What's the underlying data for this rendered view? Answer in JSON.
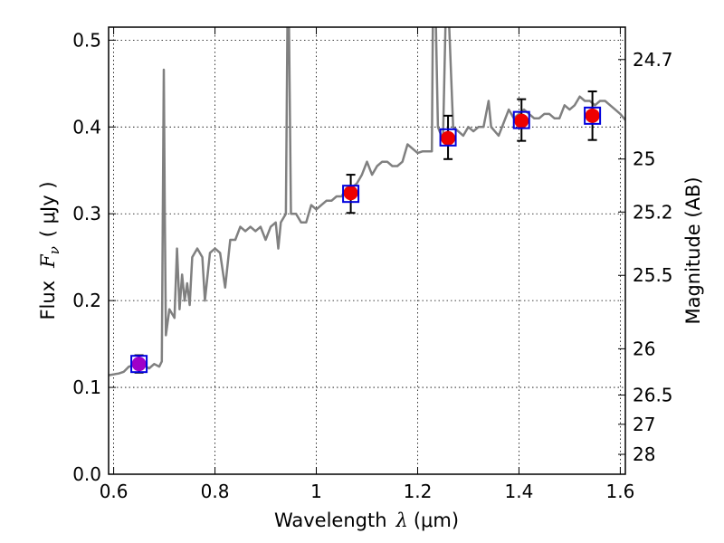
{
  "chart_data": {
    "type": "line",
    "xlabel": "Wavelength",
    "xlabel_symbol": "λ",
    "xlabel_unit": "(μm)",
    "ylabel": "Flux",
    "ylabel_symbol": "F",
    "ylabel_subscript": "ν",
    "ylabel_unit": "( μJy )",
    "y2label": "Magnitude (AB)",
    "xlim": [
      0.59,
      1.61
    ],
    "ylim": [
      0.0,
      0.515
    ],
    "grid": true,
    "x_ticks": [
      {
        "value": 0.6,
        "label": "0.6"
      },
      {
        "value": 0.8,
        "label": "0.8"
      },
      {
        "value": 1.0,
        "label": "1"
      },
      {
        "value": 1.2,
        "label": "1.2"
      },
      {
        "value": 1.4,
        "label": "1.4"
      },
      {
        "value": 1.6,
        "label": "1.6"
      }
    ],
    "y_ticks": [
      {
        "value": 0.0,
        "label": "0.0"
      },
      {
        "value": 0.1,
        "label": "0.1"
      },
      {
        "value": 0.2,
        "label": "0.2"
      },
      {
        "value": 0.3,
        "label": "0.3"
      },
      {
        "value": 0.4,
        "label": "0.4"
      },
      {
        "value": 0.5,
        "label": "0.5"
      }
    ],
    "y2_ticks": [
      {
        "flux": 0.4777,
        "label": "24.7"
      },
      {
        "flux": 0.3631,
        "label": "25"
      },
      {
        "flux": 0.302,
        "label": "25.2"
      },
      {
        "flux": 0.2291,
        "label": "25.5"
      },
      {
        "flux": 0.1445,
        "label": "26"
      },
      {
        "flux": 0.0912,
        "label": "26.5"
      },
      {
        "flux": 0.0575,
        "label": "27"
      },
      {
        "flux": 0.0229,
        "label": "28"
      }
    ],
    "series": [
      {
        "role": "model-spectrum",
        "color": "#808080",
        "points": [
          [
            0.59,
            0.114
          ],
          [
            0.61,
            0.116
          ],
          [
            0.62,
            0.118
          ],
          [
            0.63,
            0.124
          ],
          [
            0.645,
            0.126
          ],
          [
            0.66,
            0.125
          ],
          [
            0.67,
            0.122
          ],
          [
            0.68,
            0.127
          ],
          [
            0.69,
            0.124
          ],
          [
            0.695,
            0.13
          ],
          [
            0.697,
            0.3
          ],
          [
            0.699,
            0.466
          ],
          [
            0.701,
            0.3
          ],
          [
            0.703,
            0.16
          ],
          [
            0.71,
            0.19
          ],
          [
            0.72,
            0.18
          ],
          [
            0.725,
            0.26
          ],
          [
            0.73,
            0.19
          ],
          [
            0.735,
            0.23
          ],
          [
            0.74,
            0.2
          ],
          [
            0.745,
            0.22
          ],
          [
            0.75,
            0.195
          ],
          [
            0.755,
            0.25
          ],
          [
            0.765,
            0.26
          ],
          [
            0.775,
            0.25
          ],
          [
            0.78,
            0.2
          ],
          [
            0.79,
            0.255
          ],
          [
            0.8,
            0.26
          ],
          [
            0.81,
            0.255
          ],
          [
            0.82,
            0.215
          ],
          [
            0.83,
            0.27
          ],
          [
            0.84,
            0.27
          ],
          [
            0.85,
            0.285
          ],
          [
            0.86,
            0.28
          ],
          [
            0.87,
            0.285
          ],
          [
            0.88,
            0.28
          ],
          [
            0.89,
            0.285
          ],
          [
            0.9,
            0.27
          ],
          [
            0.91,
            0.285
          ],
          [
            0.92,
            0.29
          ],
          [
            0.925,
            0.26
          ],
          [
            0.93,
            0.29
          ],
          [
            0.94,
            0.3
          ],
          [
            0.943,
            0.52
          ],
          [
            0.946,
            0.52
          ],
          [
            0.95,
            0.3
          ],
          [
            0.96,
            0.3
          ],
          [
            0.97,
            0.29
          ],
          [
            0.98,
            0.29
          ],
          [
            0.99,
            0.31
          ],
          [
            1.0,
            0.305
          ],
          [
            1.01,
            0.31
          ],
          [
            1.02,
            0.315
          ],
          [
            1.03,
            0.315
          ],
          [
            1.04,
            0.32
          ],
          [
            1.05,
            0.32
          ],
          [
            1.06,
            0.33
          ],
          [
            1.07,
            0.33
          ],
          [
            1.08,
            0.335
          ],
          [
            1.09,
            0.345
          ],
          [
            1.1,
            0.36
          ],
          [
            1.11,
            0.345
          ],
          [
            1.12,
            0.355
          ],
          [
            1.13,
            0.36
          ],
          [
            1.14,
            0.36
          ],
          [
            1.15,
            0.355
          ],
          [
            1.16,
            0.355
          ],
          [
            1.17,
            0.36
          ],
          [
            1.18,
            0.38
          ],
          [
            1.19,
            0.375
          ],
          [
            1.2,
            0.37
          ],
          [
            1.21,
            0.372
          ],
          [
            1.22,
            0.372
          ],
          [
            1.228,
            0.372
          ],
          [
            1.23,
            0.52
          ],
          [
            1.236,
            0.52
          ],
          [
            1.24,
            0.4
          ],
          [
            1.25,
            0.385
          ],
          [
            1.255,
            0.52
          ],
          [
            1.262,
            0.52
          ],
          [
            1.27,
            0.4
          ],
          [
            1.28,
            0.395
          ],
          [
            1.29,
            0.39
          ],
          [
            1.3,
            0.4
          ],
          [
            1.31,
            0.395
          ],
          [
            1.32,
            0.4
          ],
          [
            1.33,
            0.4
          ],
          [
            1.335,
            0.415
          ],
          [
            1.34,
            0.43
          ],
          [
            1.345,
            0.4
          ],
          [
            1.36,
            0.39
          ],
          [
            1.37,
            0.405
          ],
          [
            1.38,
            0.42
          ],
          [
            1.39,
            0.41
          ],
          [
            1.4,
            0.415
          ],
          [
            1.41,
            0.42
          ],
          [
            1.42,
            0.415
          ],
          [
            1.43,
            0.41
          ],
          [
            1.44,
            0.41
          ],
          [
            1.45,
            0.415
          ],
          [
            1.46,
            0.415
          ],
          [
            1.47,
            0.41
          ],
          [
            1.48,
            0.41
          ],
          [
            1.49,
            0.425
          ],
          [
            1.5,
            0.42
          ],
          [
            1.51,
            0.425
          ],
          [
            1.52,
            0.435
          ],
          [
            1.53,
            0.43
          ],
          [
            1.54,
            0.43
          ],
          [
            1.55,
            0.425
          ],
          [
            1.56,
            0.43
          ],
          [
            1.57,
            0.43
          ],
          [
            1.58,
            0.425
          ],
          [
            1.59,
            0.42
          ],
          [
            1.6,
            0.415
          ],
          [
            1.61,
            0.408
          ]
        ]
      },
      {
        "role": "observed-photometry",
        "color": "#0000dd",
        "marker": "open-square",
        "points": [
          {
            "x": 0.65,
            "y": 0.127,
            "err": 0.01
          },
          {
            "x": 1.068,
            "y": 0.323,
            "err": 0.022
          },
          {
            "x": 1.26,
            "y": 0.388,
            "err": 0.025
          },
          {
            "x": 1.405,
            "y": 0.408,
            "err": 0.024
          },
          {
            "x": 1.545,
            "y": 0.413,
            "err": 0.028
          }
        ]
      },
      {
        "role": "model-photometry",
        "color": "#ee0000",
        "marker": "filled-circle",
        "points": [
          {
            "x": 0.65,
            "y": 0.127,
            "color": "#a000c8"
          },
          {
            "x": 1.068,
            "y": 0.324
          },
          {
            "x": 1.26,
            "y": 0.387
          },
          {
            "x": 1.405,
            "y": 0.407
          },
          {
            "x": 1.545,
            "y": 0.413
          }
        ]
      }
    ]
  }
}
